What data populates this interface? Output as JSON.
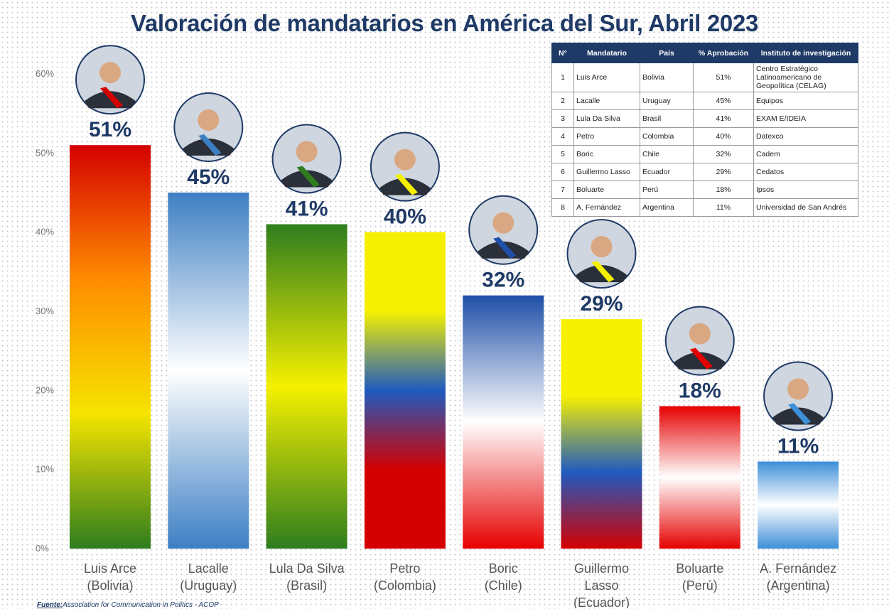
{
  "chart_data": {
    "type": "bar",
    "title": "Valoración de mandatarios en América del Sur, Abril 2023",
    "ylim": [
      0,
      60
    ],
    "yticks": [
      0,
      10,
      20,
      30,
      40,
      50,
      60
    ],
    "ytick_labels": [
      "0%",
      "10%",
      "20%",
      "30%",
      "40%",
      "50%",
      "60%"
    ],
    "grid": false,
    "categories": [
      [
        "Luis Arce",
        "(Bolivia)"
      ],
      [
        "Lacalle",
        "(Uruguay)"
      ],
      [
        "Lula Da Silva",
        "(Brasil)"
      ],
      [
        "Petro",
        "(Colombia)"
      ],
      [
        "Boric",
        "(Chile)"
      ],
      [
        "Guillermo",
        "Lasso",
        "(Ecuador)"
      ],
      [
        "Boluarte",
        "(Perú)"
      ],
      [
        "A. Fernández",
        "(Argentina)"
      ]
    ],
    "values": [
      51,
      45,
      41,
      40,
      32,
      29,
      18,
      11
    ],
    "value_labels": [
      "51%",
      "45%",
      "41%",
      "40%",
      "32%",
      "29%",
      "18%",
      "11%"
    ],
    "bar_colors": [
      [
        "#d40000",
        "#ff8c00",
        "#f5e400",
        "#2e7d1e"
      ],
      [
        "#3d7fc4",
        "#ffffff",
        "#3d7fc4"
      ],
      [
        "#2e7d1e",
        "#f5f000",
        "#2e7d1e"
      ],
      [
        "#f5f000",
        "#f5f000",
        "#1f5bbf",
        "#d40000",
        "#d40000"
      ],
      [
        "#1f4fa8",
        "#ffffff",
        "#e60000"
      ],
      [
        "#f5f000",
        "#f5f000",
        "#1f5bbf",
        "#d40000"
      ],
      [
        "#e60000",
        "#ffffff",
        "#e60000"
      ],
      [
        "#3d8fd8",
        "#ffffff",
        "#3d8fd8"
      ]
    ]
  },
  "table": {
    "headers": [
      "N°",
      "Mandatario",
      "País",
      "% Aprobación",
      "Instituto de investigación"
    ],
    "rows": [
      [
        "1",
        "Luis Arce",
        "Bolivia",
        "51%",
        "Centro Estratégico Latinoamericano de Geopolítica (CELAG)"
      ],
      [
        "2",
        "Lacalle",
        "Uruguay",
        "45%",
        "Equipos"
      ],
      [
        "3",
        "Lula Da Silva",
        "Brasil",
        "41%",
        "EXAM E/IDEIA"
      ],
      [
        "4",
        "Petro",
        "Colombia",
        "40%",
        "Datexco"
      ],
      [
        "5",
        "Boric",
        "Chile",
        "32%",
        "Cadem"
      ],
      [
        "6",
        "Guillermo Lasso",
        "Ecuador",
        "29%",
        "Cedatos"
      ],
      [
        "7",
        "Boluarte",
        "Perú",
        "18%",
        "Ipsos"
      ],
      [
        "8",
        "A. Fernández",
        "Argentina",
        "11%",
        "Universidad de San Andrés"
      ]
    ]
  },
  "source": {
    "label": "Fuente:",
    "text": "Association for Communication in Politics - ACOP"
  }
}
